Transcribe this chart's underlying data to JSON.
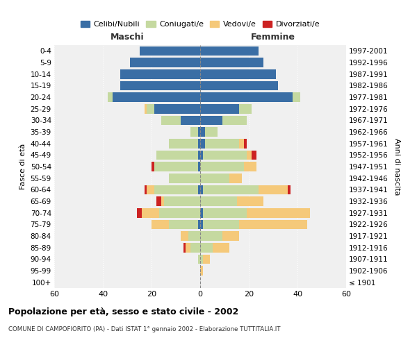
{
  "age_groups": [
    "100+",
    "95-99",
    "90-94",
    "85-89",
    "80-84",
    "75-79",
    "70-74",
    "65-69",
    "60-64",
    "55-59",
    "50-54",
    "45-49",
    "40-44",
    "35-39",
    "30-34",
    "25-29",
    "20-24",
    "15-19",
    "10-14",
    "5-9",
    "0-4"
  ],
  "birth_years": [
    "≤ 1901",
    "1902-1906",
    "1907-1911",
    "1912-1916",
    "1917-1921",
    "1922-1926",
    "1927-1931",
    "1932-1936",
    "1937-1941",
    "1942-1946",
    "1947-1951",
    "1952-1956",
    "1957-1961",
    "1962-1966",
    "1967-1971",
    "1972-1976",
    "1977-1981",
    "1982-1986",
    "1987-1991",
    "1992-1996",
    "1997-2001"
  ],
  "males": {
    "celibi": [
      0,
      0,
      0,
      0,
      0,
      1,
      0,
      0,
      1,
      0,
      1,
      1,
      1,
      1,
      8,
      19,
      36,
      33,
      33,
      29,
      25
    ],
    "coniugati": [
      0,
      0,
      1,
      4,
      5,
      12,
      17,
      15,
      18,
      13,
      18,
      17,
      12,
      3,
      8,
      3,
      2,
      0,
      0,
      0,
      0
    ],
    "vedovi": [
      0,
      0,
      0,
      2,
      3,
      7,
      7,
      1,
      3,
      0,
      0,
      0,
      0,
      0,
      0,
      1,
      0,
      0,
      0,
      0,
      0
    ],
    "divorziati": [
      0,
      0,
      0,
      1,
      0,
      0,
      2,
      2,
      1,
      0,
      1,
      0,
      0,
      0,
      0,
      0,
      0,
      0,
      0,
      0,
      0
    ]
  },
  "females": {
    "nubili": [
      0,
      0,
      0,
      0,
      0,
      1,
      1,
      0,
      1,
      0,
      0,
      1,
      2,
      2,
      9,
      16,
      38,
      32,
      31,
      26,
      24
    ],
    "coniugate": [
      0,
      0,
      1,
      5,
      9,
      15,
      18,
      15,
      23,
      12,
      18,
      18,
      14,
      5,
      10,
      5,
      3,
      0,
      0,
      0,
      0
    ],
    "vedove": [
      0,
      1,
      3,
      7,
      7,
      28,
      26,
      11,
      12,
      5,
      5,
      2,
      2,
      0,
      0,
      0,
      0,
      0,
      0,
      0,
      0
    ],
    "divorziate": [
      0,
      0,
      0,
      0,
      0,
      0,
      0,
      0,
      1,
      0,
      0,
      2,
      1,
      0,
      0,
      0,
      0,
      0,
      0,
      0,
      0
    ]
  },
  "colors": {
    "celibi_nubili": "#3a6ea5",
    "coniugati": "#c5d9a0",
    "vedovi": "#f5c97a",
    "divorziati": "#cc2222"
  },
  "xlim": 60,
  "title": "Popolazione per età, sesso e stato civile - 2002",
  "subtitle": "COMUNE DI CAMPOFIORITO (PA) - Dati ISTAT 1° gennaio 2002 - Elaborazione TUTTITALIA.IT",
  "ylabel_left": "Fasce di età",
  "ylabel_right": "Anni di nascita",
  "xlabel_maschi": "Maschi",
  "xlabel_femmine": "Femmine",
  "legend_labels": [
    "Celibi/Nubili",
    "Coniugati/e",
    "Vedovi/e",
    "Divorziati/e"
  ],
  "background_color": "#ffffff",
  "plot_bg_color": "#f0f0f0",
  "grid_color": "#ffffff"
}
